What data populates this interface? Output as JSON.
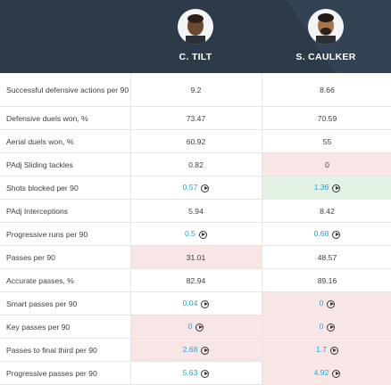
{
  "players": [
    {
      "name": "C. TILT"
    },
    {
      "name": "S. CAULKER"
    }
  ],
  "rows": [
    {
      "label": "Successful defensive actions per 90",
      "p1": "9.2",
      "p2": "8.66",
      "p1_bg": "",
      "p2_bg": "",
      "p1_link": false,
      "p2_link": false
    },
    {
      "label": "Defensive duels won, %",
      "p1": "73.47",
      "p2": "70.59",
      "p1_bg": "",
      "p2_bg": "",
      "p1_link": false,
      "p2_link": false
    },
    {
      "label": "Aerial duels won, %",
      "p1": "60.92",
      "p2": "55",
      "p1_bg": "",
      "p2_bg": "",
      "p1_link": false,
      "p2_link": false
    },
    {
      "label": "PAdj Sliding tackles",
      "p1": "0.82",
      "p2": "0",
      "p1_bg": "",
      "p2_bg": "red",
      "p1_link": false,
      "p2_link": false
    },
    {
      "label": "Shots blocked per 90",
      "p1": "0.57",
      "p2": "1.36",
      "p1_bg": "",
      "p2_bg": "green",
      "p1_link": true,
      "p2_link": true
    },
    {
      "label": "PAdj Interceptions",
      "p1": "5.94",
      "p2": "8.42",
      "p1_bg": "",
      "p2_bg": "",
      "p1_link": false,
      "p2_link": false
    },
    {
      "label": "Progressive runs per 90",
      "p1": "0.5",
      "p2": "0.68",
      "p1_bg": "",
      "p2_bg": "",
      "p1_link": true,
      "p2_link": true
    },
    {
      "label": "Passes per 90",
      "p1": "31.01",
      "p2": "48.57",
      "p1_bg": "red",
      "p2_bg": "",
      "p1_link": false,
      "p2_link": false
    },
    {
      "label": "Accurate passes, %",
      "p1": "82.94",
      "p2": "89.16",
      "p1_bg": "",
      "p2_bg": "",
      "p1_link": false,
      "p2_link": false
    },
    {
      "label": "Smart passes per 90",
      "p1": "0.04",
      "p2": "0",
      "p1_bg": "",
      "p2_bg": "red",
      "p1_link": true,
      "p2_link": true
    },
    {
      "label": "Key passes per 90",
      "p1": "0",
      "p2": "0",
      "p1_bg": "red",
      "p2_bg": "red",
      "p1_link": true,
      "p2_link": true
    },
    {
      "label": "Passes to final third per 90",
      "p1": "2.68",
      "p2": "1.7",
      "p1_bg": "red",
      "p2_bg": "red",
      "p1_link": true,
      "p2_link": true
    },
    {
      "label": "Progressive passes per 90",
      "p1": "5.63",
      "p2": "4.92",
      "p1_bg": "",
      "p2_bg": "red",
      "p1_link": true,
      "p2_link": true
    }
  ],
  "colors": {
    "header_bg": "#2d3a4a",
    "link": "#2a9fd6",
    "worse_bg": "#f8e5e6",
    "better_bg": "#e3f2e4"
  },
  "icons": {
    "play": "play-circle-icon"
  }
}
